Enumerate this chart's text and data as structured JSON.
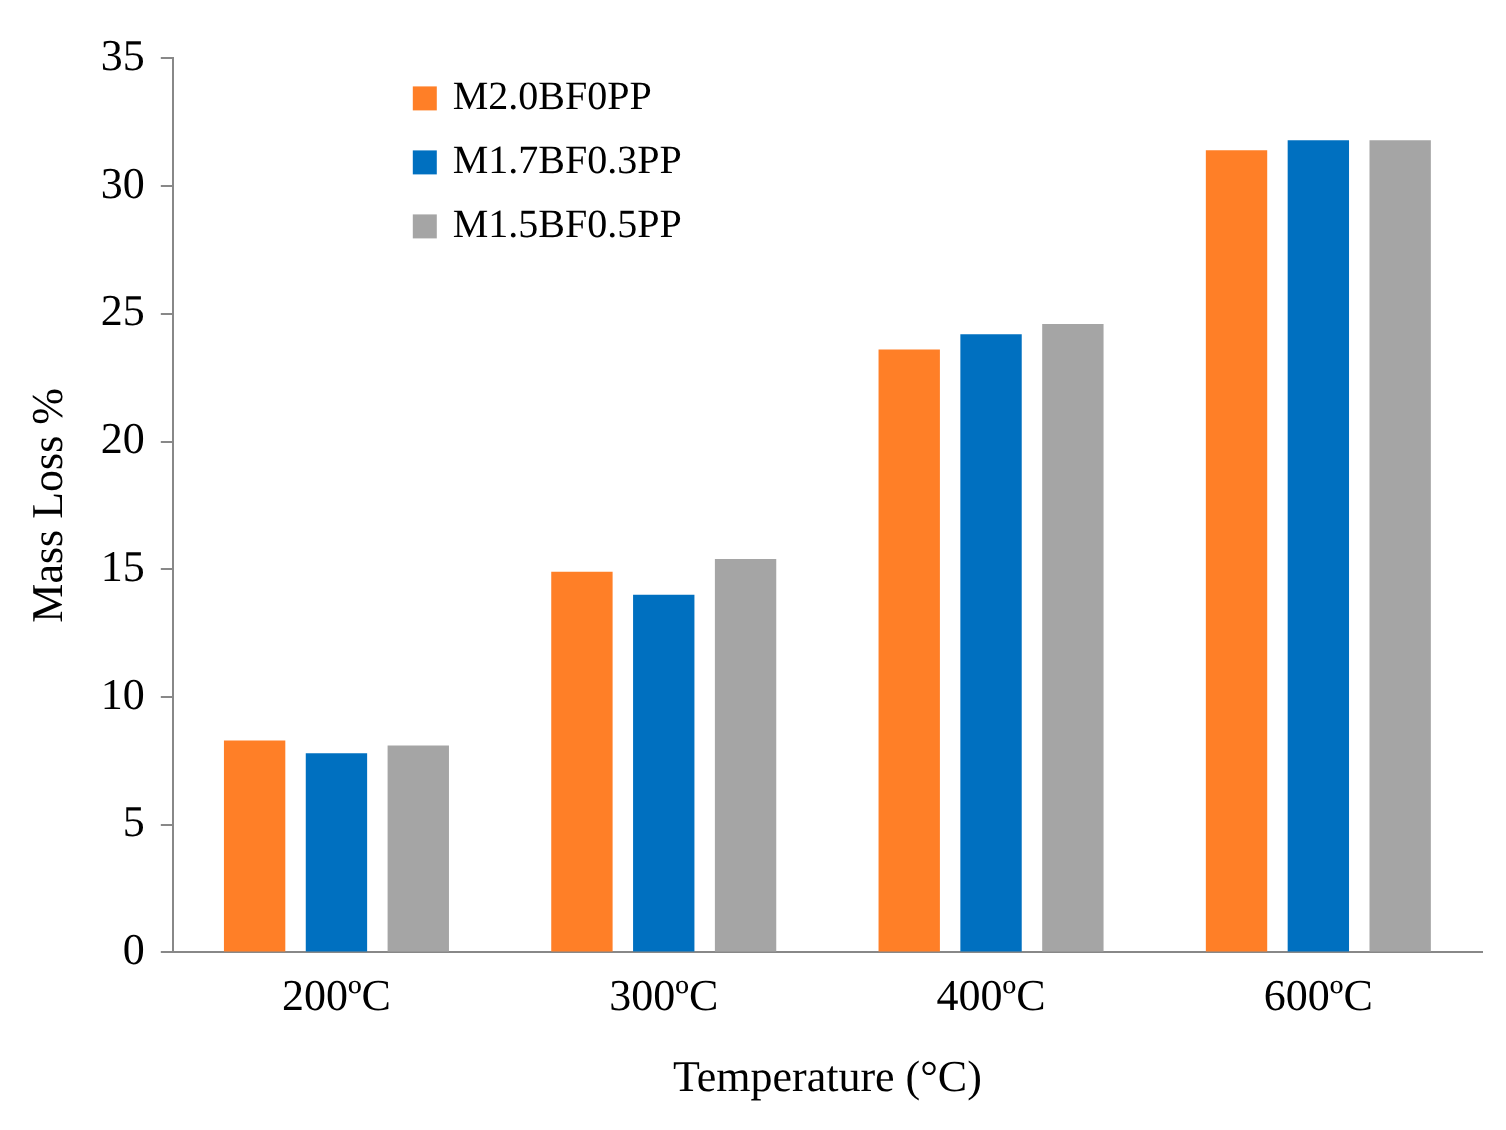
{
  "chart_data": {
    "type": "bar",
    "xlabel": "Temperature (°C)",
    "ylabel": "Mass Loss %",
    "categories": [
      "200ºC",
      "300ºC",
      "400ºC",
      "600ºC"
    ],
    "series": [
      {
        "name": "M2.0BF0PP",
        "color": "#ff7f27",
        "values": [
          8.3,
          14.9,
          23.6,
          31.4
        ]
      },
      {
        "name": "M1.7BF0.3PP",
        "color": "#0070c0",
        "values": [
          7.8,
          14.0,
          24.2,
          31.8
        ]
      },
      {
        "name": "M1.5BF0.5PP",
        "color": "#a5a5a5",
        "values": [
          8.1,
          15.4,
          24.6,
          31.8
        ]
      }
    ],
    "ylim": [
      0,
      35
    ],
    "yticks": [
      0,
      5,
      10,
      15,
      20,
      25,
      30,
      35
    ],
    "grid": false,
    "legend": "top left"
  }
}
